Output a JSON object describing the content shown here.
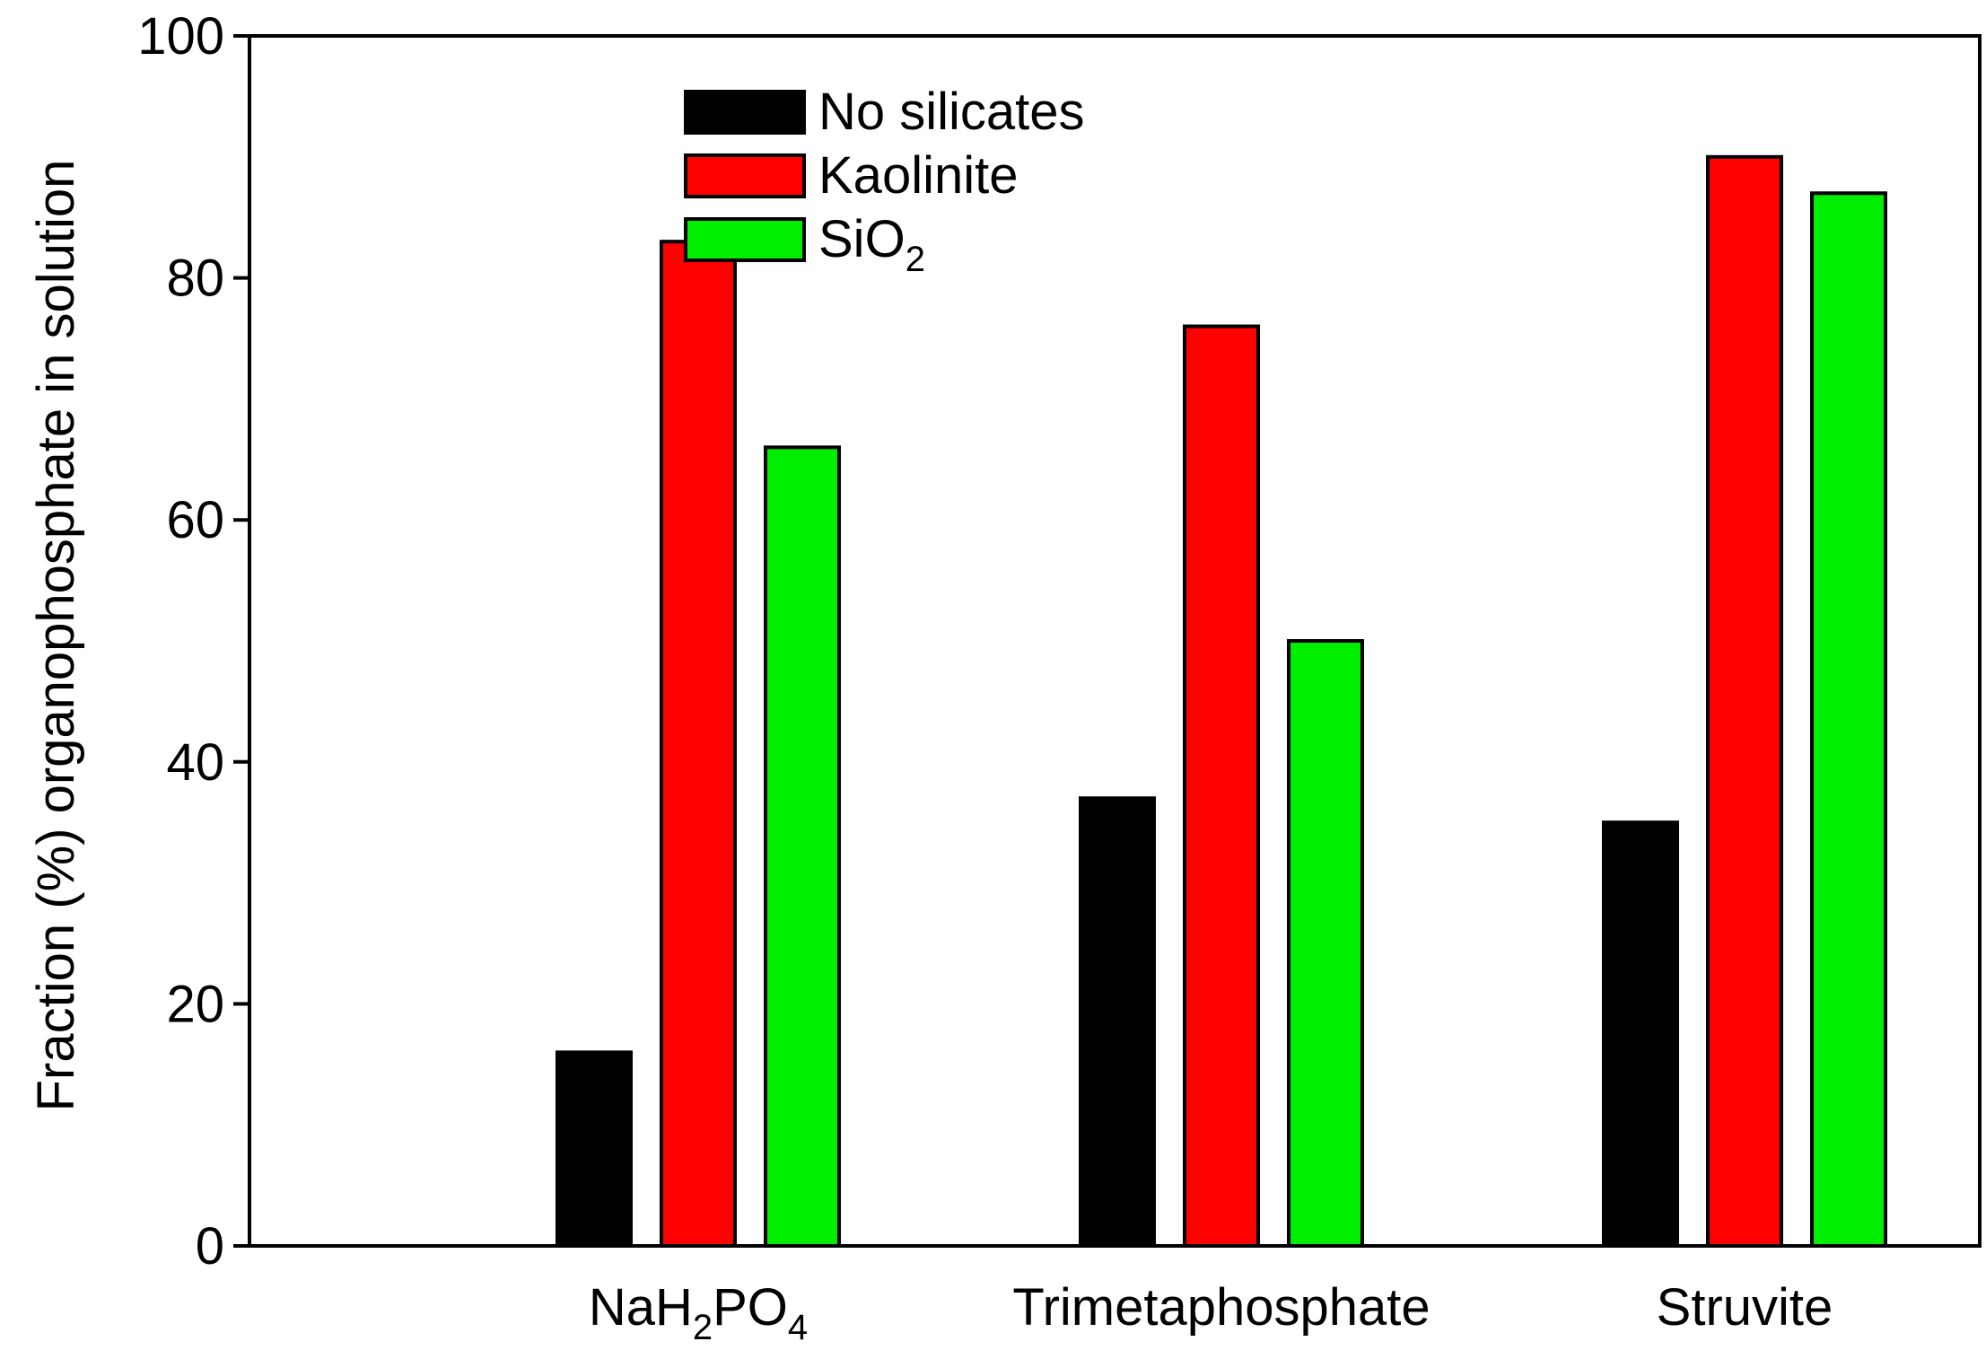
{
  "chart_data": {
    "type": "bar",
    "title": "",
    "xlabel": "",
    "ylabel": "Fraction (%) organophosphate in solution",
    "ylim": [
      0,
      100
    ],
    "yticks": [
      0,
      20,
      40,
      60,
      80,
      100
    ],
    "grid": false,
    "legend_position": "top-left",
    "categories": [
      {
        "label": "NaH",
        "sub1": "2",
        "mid": "PO",
        "sub2": "4",
        "plain": "NaH2PO4"
      },
      {
        "label": "Trimetaphosphate",
        "sub1": "",
        "mid": "",
        "sub2": "",
        "plain": "Trimetaphosphate"
      },
      {
        "label": "Struvite",
        "sub1": "",
        "mid": "",
        "sub2": "",
        "plain": "Struvite"
      }
    ],
    "series": [
      {
        "name": "No silicates",
        "name_main": "No silicates",
        "name_sub": "",
        "color": "#000000",
        "values": [
          16,
          37,
          35
        ]
      },
      {
        "name": "Kaolinite",
        "name_main": "Kaolinite",
        "name_sub": "",
        "color": "#ff0000",
        "values": [
          83,
          76,
          90
        ]
      },
      {
        "name": "SiO2",
        "name_main": "SiO",
        "name_sub": "2",
        "color": "#00ee00",
        "values": [
          66,
          50,
          87
        ]
      }
    ]
  }
}
